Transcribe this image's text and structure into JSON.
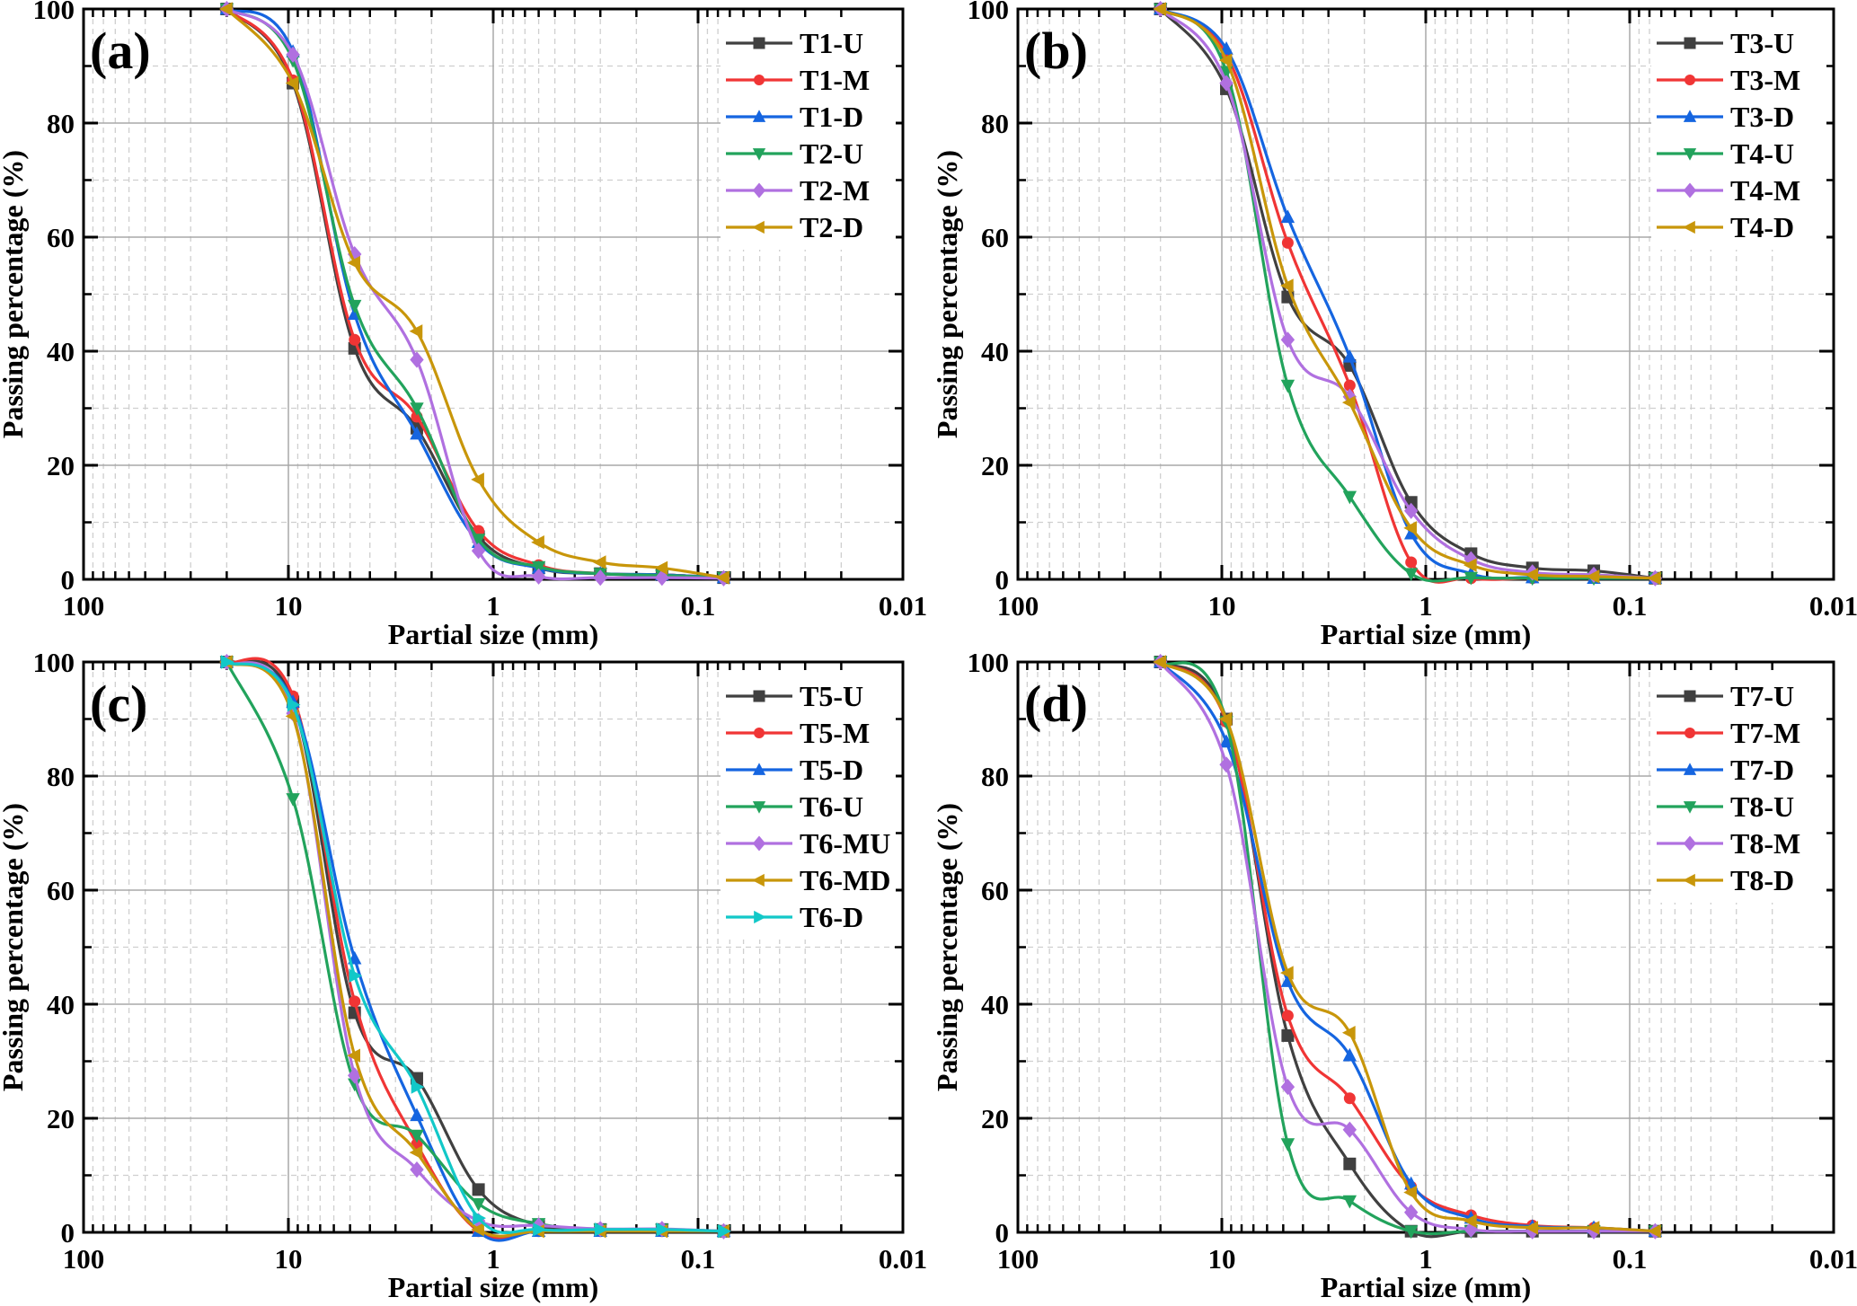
{
  "figure": {
    "description": "Particle size distribution curves, four panels (a)-(d)"
  },
  "chart_data": [
    {
      "type": "line",
      "panel_label": "(a)",
      "xlabel": "Partial size (mm)",
      "ylabel": "Passing percentage (%)",
      "xscale": "log",
      "xaxis_reversed": true,
      "xlim": [
        100,
        0.01
      ],
      "ylim": [
        0,
        100
      ],
      "xticks": [
        "100",
        "10",
        "1",
        "0.1",
        "0.01"
      ],
      "yticks": [
        "0",
        "20",
        "40",
        "60",
        "80",
        "100"
      ],
      "grid": true,
      "legend_position": "top-right",
      "x": [
        20,
        9.5,
        4.75,
        2.36,
        1.18,
        0.6,
        0.3,
        0.15,
        0.075
      ],
      "series": [
        {
          "name": "T1-U",
          "color": "#404040",
          "marker": "square",
          "values": [
            100,
            87,
            40.5,
            26.5,
            7.5,
            2.0,
            1.0,
            0.8,
            0.3
          ]
        },
        {
          "name": "T1-M",
          "color": "#f03535",
          "marker": "circle",
          "values": [
            100,
            87.5,
            42,
            28.5,
            8.5,
            2.5,
            1.0,
            0.8,
            0.3
          ]
        },
        {
          "name": "T1-D",
          "color": "#1565e0",
          "marker": "triangle-up",
          "values": [
            100,
            92.5,
            46.5,
            25.5,
            6.5,
            2.0,
            1.0,
            0.8,
            0.3
          ]
        },
        {
          "name": "T2-U",
          "color": "#22a35c",
          "marker": "triangle-down",
          "values": [
            100,
            91,
            48,
            30,
            7,
            2.2,
            1.0,
            0.7,
            0.3
          ]
        },
        {
          "name": "T2-M",
          "color": "#b070e0",
          "marker": "diamond",
          "values": [
            100,
            92,
            57,
            38.5,
            5,
            0.5,
            0.3,
            0.3,
            0.2
          ]
        },
        {
          "name": "T2-D",
          "color": "#c8960a",
          "marker": "triangle-left",
          "values": [
            100,
            87,
            55.5,
            43.5,
            17.5,
            6.5,
            3.0,
            2.0,
            0.3
          ]
        }
      ]
    },
    {
      "type": "line",
      "panel_label": "(b)",
      "xlabel": "Partial size (mm)",
      "ylabel": "Passing percentage (%)",
      "xscale": "log",
      "xaxis_reversed": true,
      "xlim": [
        100,
        0.01
      ],
      "ylim": [
        0,
        100
      ],
      "xticks": [
        "100",
        "10",
        "1",
        "0.1",
        "0.01"
      ],
      "yticks": [
        "0",
        "20",
        "40",
        "60",
        "80",
        "100"
      ],
      "grid": true,
      "legend_position": "top-right",
      "x": [
        20,
        9.5,
        4.75,
        2.36,
        1.18,
        0.6,
        0.3,
        0.15,
        0.075
      ],
      "series": [
        {
          "name": "T3-U",
          "color": "#404040",
          "marker": "square",
          "values": [
            100,
            86,
            49.5,
            37.5,
            13.5,
            4.5,
            2.0,
            1.5,
            0.2
          ]
        },
        {
          "name": "T3-M",
          "color": "#f03535",
          "marker": "circle",
          "values": [
            100,
            92,
            59,
            34,
            3,
            0.2,
            0.2,
            0.2,
            0.2
          ]
        },
        {
          "name": "T3-D",
          "color": "#1565e0",
          "marker": "triangle-up",
          "values": [
            100,
            93,
            63.5,
            39,
            8,
            1.0,
            0.3,
            0.2,
            0.2
          ]
        },
        {
          "name": "T4-U",
          "color": "#22a35c",
          "marker": "triangle-down",
          "values": [
            100,
            89,
            34,
            14.5,
            1,
            0.3,
            0.2,
            0.2,
            0.2
          ]
        },
        {
          "name": "T4-M",
          "color": "#b070e0",
          "marker": "diamond",
          "values": [
            100,
            87,
            42,
            32,
            12,
            3.5,
            1.2,
            0.8,
            0.2
          ]
        },
        {
          "name": "T4-D",
          "color": "#c8960a",
          "marker": "triangle-left",
          "values": [
            100,
            91,
            51.5,
            31,
            9,
            2.5,
            0.8,
            0.5,
            0.2
          ]
        }
      ]
    },
    {
      "type": "line",
      "panel_label": "(c)",
      "xlabel": "Partial size (mm)",
      "ylabel": "Passing percentage (%)",
      "xscale": "log",
      "xaxis_reversed": true,
      "xlim": [
        100,
        0.01
      ],
      "ylim": [
        0,
        100
      ],
      "xticks": [
        "100",
        "10",
        "1",
        "0.1",
        "0.01"
      ],
      "yticks": [
        "0",
        "20",
        "40",
        "60",
        "80",
        "100"
      ],
      "grid": true,
      "legend_position": "top-right",
      "x": [
        20,
        9.5,
        4.75,
        2.36,
        1.18,
        0.6,
        0.3,
        0.15,
        0.075
      ],
      "series": [
        {
          "name": "T5-U",
          "color": "#404040",
          "marker": "square",
          "values": [
            100,
            93,
            38.5,
            27,
            7.5,
            1.2,
            0.5,
            0.5,
            0.2
          ]
        },
        {
          "name": "T5-M",
          "color": "#f03535",
          "marker": "circle",
          "values": [
            100,
            94,
            40.5,
            15.5,
            0.2,
            0.2,
            0.2,
            0.2,
            0.2
          ]
        },
        {
          "name": "T5-D",
          "color": "#1565e0",
          "marker": "triangle-up",
          "values": [
            100,
            93,
            48,
            20.5,
            0.2,
            0.2,
            0.2,
            0.2,
            0.2
          ]
        },
        {
          "name": "T6-U",
          "color": "#22a35c",
          "marker": "triangle-down",
          "values": [
            100,
            76,
            26,
            17,
            5,
            1.5,
            0.5,
            0.5,
            0.2
          ]
        },
        {
          "name": "T6-MU",
          "color": "#b070e0",
          "marker": "diamond",
          "values": [
            100,
            91,
            27.5,
            11,
            2,
            1.2,
            0.6,
            0.6,
            0.2
          ]
        },
        {
          "name": "T6-MD",
          "color": "#c8960a",
          "marker": "triangle-left",
          "values": [
            100,
            90.5,
            31,
            14,
            0.5,
            0.2,
            0.2,
            0.2,
            0.2
          ]
        },
        {
          "name": "T6-D",
          "color": "#12c8c8",
          "marker": "triangle-right",
          "values": [
            100,
            92.5,
            45,
            25.5,
            2.5,
            0.5,
            0.5,
            0.5,
            0.2
          ]
        }
      ]
    },
    {
      "type": "line",
      "panel_label": "(d)",
      "xlabel": "Partial size (mm)",
      "ylabel": "Passing percentage (%)",
      "xscale": "log",
      "xaxis_reversed": true,
      "xlim": [
        100,
        0.01
      ],
      "ylim": [
        0,
        100
      ],
      "xticks": [
        "100",
        "10",
        "1",
        "0.1",
        "0.01"
      ],
      "yticks": [
        "0",
        "20",
        "40",
        "60",
        "80",
        "100"
      ],
      "grid": true,
      "legend_position": "top-right",
      "x": [
        20,
        9.5,
        4.75,
        2.36,
        1.18,
        0.6,
        0.3,
        0.15,
        0.075
      ],
      "series": [
        {
          "name": "T7-U",
          "color": "#404040",
          "marker": "square",
          "values": [
            100,
            90,
            34.5,
            12,
            0.2,
            0.2,
            0.2,
            0.2,
            0.2
          ]
        },
        {
          "name": "T7-M",
          "color": "#f03535",
          "marker": "circle",
          "values": [
            100,
            89.5,
            38,
            23.5,
            8,
            3.0,
            1.2,
            0.8,
            0.2
          ]
        },
        {
          "name": "T7-D",
          "color": "#1565e0",
          "marker": "triangle-up",
          "values": [
            100,
            86,
            44,
            31,
            8.5,
            2.5,
            1.0,
            0.8,
            0.2
          ]
        },
        {
          "name": "T8-U",
          "color": "#22a35c",
          "marker": "triangle-down",
          "values": [
            100,
            89.5,
            15.5,
            5.5,
            0.2,
            0.2,
            0.2,
            0.2,
            0.2
          ]
        },
        {
          "name": "T8-M",
          "color": "#b070e0",
          "marker": "diamond",
          "values": [
            100,
            82,
            25.5,
            18,
            3.5,
            0.5,
            0.2,
            0.2,
            0.2
          ]
        },
        {
          "name": "T8-D",
          "color": "#c8960a",
          "marker": "triangle-left",
          "values": [
            100,
            90,
            45.5,
            35,
            7,
            2.0,
            0.8,
            0.8,
            0.2
          ]
        }
      ]
    }
  ]
}
